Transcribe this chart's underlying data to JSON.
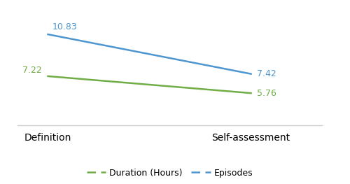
{
  "x_labels": [
    "Definition",
    "Self-assessment"
  ],
  "x_positions": [
    0,
    1
  ],
  "duration_values": [
    7.22,
    5.76
  ],
  "episodes_values": [
    10.83,
    7.42
  ],
  "duration_color": "#70ad47",
  "episodes_color": "#4e96d0",
  "duration_label": "Duration (Hours)",
  "episodes_label": "Episodes",
  "data_label_fontsize": 9,
  "axis_label_fontsize": 9.5,
  "legend_fontsize": 9,
  "ylim": [
    3,
    13
  ],
  "xlim": [
    -0.15,
    1.35
  ],
  "background_color": "#ffffff"
}
